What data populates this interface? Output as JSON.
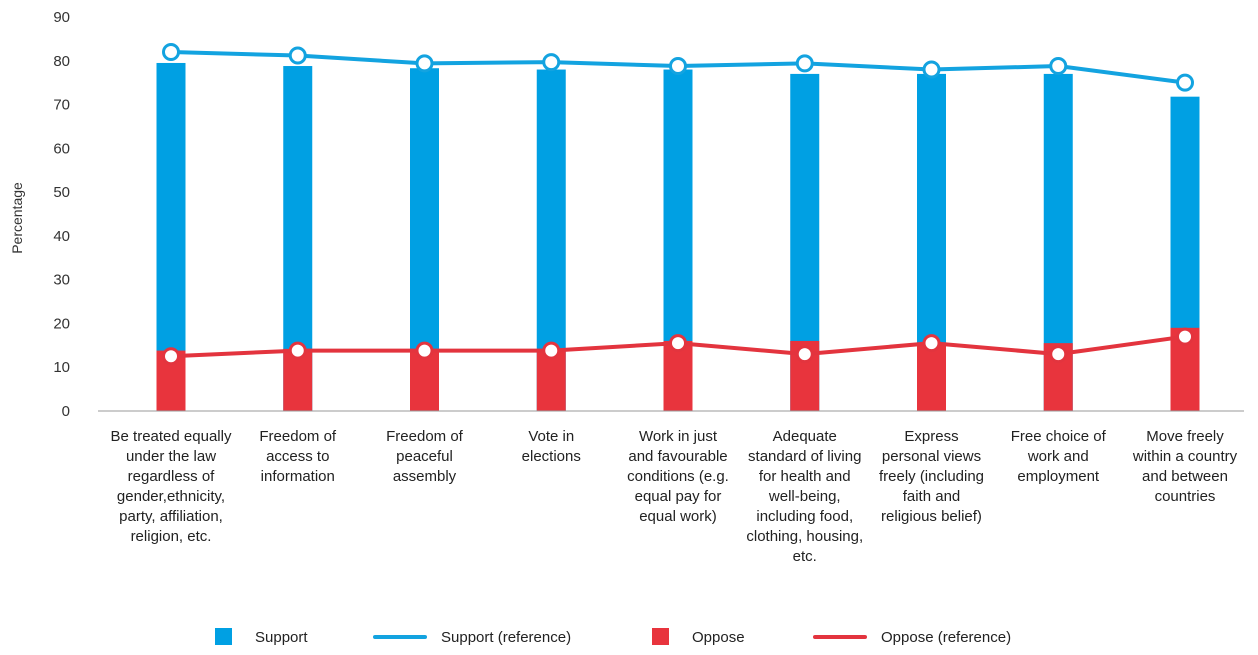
{
  "chart_data": {
    "type": "bar",
    "title": "",
    "xlabel": "",
    "ylabel": "Percentage",
    "ylim": [
      0,
      90
    ],
    "yticks": [
      0,
      10,
      20,
      30,
      40,
      50,
      60,
      70,
      80,
      90
    ],
    "grid": false,
    "legend_position": "bottom",
    "categories": [
      [
        "Be treated equally",
        "under the law",
        "regardless of",
        "gender,ethnicity,",
        "party, affiliation,",
        "religion, etc."
      ],
      [
        "Freedom of",
        "access to",
        "information"
      ],
      [
        "Freedom of",
        "peaceful",
        "assembly"
      ],
      [
        "Vote in",
        "elections"
      ],
      [
        "Work in just",
        "and favourable",
        "conditions (e.g.",
        "equal pay for",
        "equal work)"
      ],
      [
        "Adequate",
        "standard of living",
        "for health and",
        "well-being,",
        "including food,",
        "clothing, housing,",
        "etc."
      ],
      [
        "Express",
        "personal views",
        "freely (including",
        "faith and",
        "religious belief)"
      ],
      [
        "Free choice of",
        "work and",
        "employment"
      ],
      [
        "Move freely",
        "within a country",
        "and between",
        "countries"
      ]
    ],
    "series": [
      {
        "name": "Support",
        "kind": "bar",
        "color": "#00a0e3",
        "values": [
          79.5,
          78.8,
          78.3,
          78.0,
          78.0,
          77.0,
          77.0,
          77.0,
          71.8
        ]
      },
      {
        "name": "Support (reference)",
        "kind": "line",
        "color": "#13a3e0",
        "values": [
          82.0,
          81.2,
          79.4,
          79.7,
          78.8,
          79.4,
          78.0,
          78.8,
          75.0
        ]
      },
      {
        "name": "Oppose",
        "kind": "bar",
        "color": "#e8343d",
        "values": [
          13.8,
          14.2,
          14.2,
          14.2,
          16.0,
          16.0,
          15.5,
          15.5,
          19.0
        ]
      },
      {
        "name": "Oppose (reference)",
        "kind": "line",
        "color": "#e3343e",
        "values": [
          12.5,
          13.8,
          13.8,
          13.8,
          15.5,
          13.0,
          15.5,
          13.0,
          17.0
        ]
      }
    ]
  }
}
